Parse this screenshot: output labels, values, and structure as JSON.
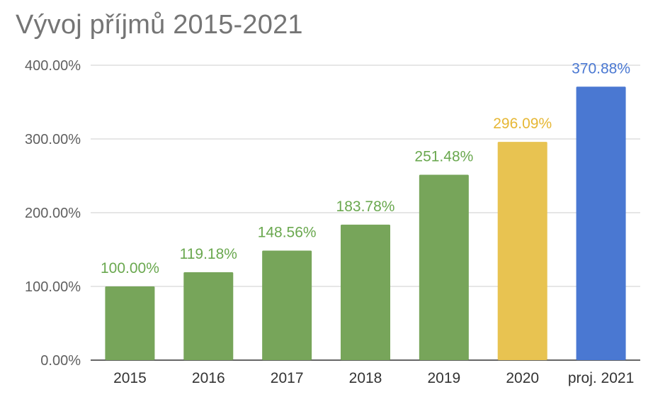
{
  "chart_data": {
    "type": "bar",
    "title": "Vývoj příjmů 2015-2021",
    "categories": [
      "2015",
      "2016",
      "2017",
      "2018",
      "2019",
      "2020",
      "proj. 2021"
    ],
    "values": [
      100.0,
      119.18,
      148.56,
      183.78,
      251.48,
      296.09,
      370.88
    ],
    "data_labels": [
      "100.00%",
      "119.18%",
      "148.56%",
      "183.78%",
      "251.48%",
      "296.09%",
      "370.88%"
    ],
    "bar_colors": [
      "#77a55a",
      "#77a55a",
      "#77a55a",
      "#77a55a",
      "#77a55a",
      "#e8c351",
      "#4a78d2"
    ],
    "label_colors": [
      "#6aa84f",
      "#6aa84f",
      "#6aa84f",
      "#6aa84f",
      "#6aa84f",
      "#e6b735",
      "#4a78d2"
    ],
    "y_ticks": [
      0,
      100,
      200,
      300,
      400
    ],
    "y_tick_labels": [
      "0.00%",
      "100.00%",
      "200.00%",
      "300.00%",
      "400.00%"
    ],
    "ylim": [
      0,
      400
    ],
    "xlabel": "",
    "ylabel": "",
    "grid": true,
    "legend": "none"
  }
}
